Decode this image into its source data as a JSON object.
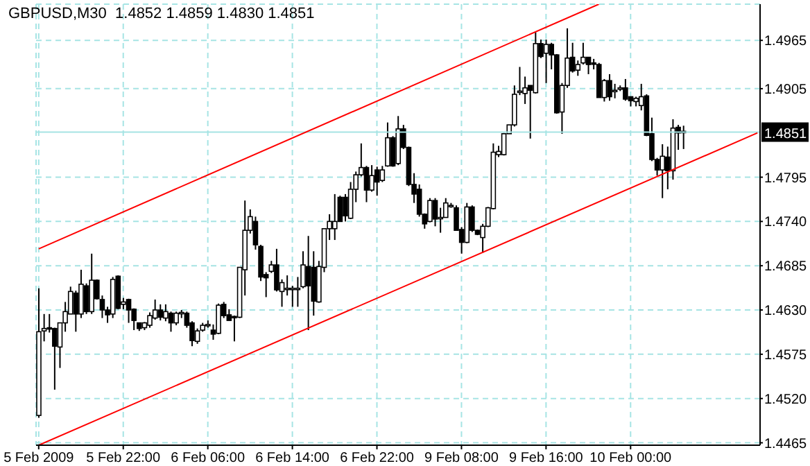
{
  "chart_data": {
    "type": "candlestick",
    "title": "GBPUSD,M30  1.4852 1.4859 1.4830 1.4851",
    "categories": [
      "5 Feb 2009",
      null,
      null,
      null,
      null,
      null,
      null,
      null,
      null,
      null,
      null,
      null,
      null,
      null,
      null,
      null,
      "5 Feb 22:00",
      null,
      null,
      null,
      null,
      null,
      null,
      null,
      null,
      null,
      null,
      null,
      null,
      null,
      null,
      null,
      "6 Feb 06:00",
      null,
      null,
      null,
      null,
      null,
      null,
      null,
      null,
      null,
      null,
      null,
      null,
      null,
      null,
      null,
      "6 Feb 14:00",
      null,
      null,
      null,
      null,
      null,
      null,
      null,
      null,
      null,
      null,
      null,
      null,
      null,
      null,
      null,
      "6 Feb 22:00",
      null,
      null,
      null,
      null,
      null,
      null,
      null,
      null,
      null,
      null,
      null,
      null,
      null,
      null,
      null,
      "9 Feb 08:00",
      null,
      null,
      null,
      null,
      null,
      null,
      null,
      null,
      null,
      null,
      null,
      null,
      null,
      null,
      null,
      "9 Feb 16:00",
      null,
      null,
      null,
      null,
      null,
      null,
      null,
      null,
      null,
      null,
      null,
      null,
      null,
      null,
      null,
      "10 Feb 00:00",
      null,
      null,
      null,
      null,
      null,
      null,
      null,
      null,
      null,
      null,
      null,
      null,
      null,
      null,
      null,
      null,
      null,
      null,
      null,
      null,
      null,
      null,
      null,
      null
    ],
    "ohlc": [
      [
        1.4499,
        1.4657,
        1.4496,
        1.4603
      ],
      [
        1.4604,
        1.4625,
        1.4591,
        1.4607
      ],
      [
        1.4608,
        1.4625,
        1.4602,
        1.4607
      ],
      [
        1.4607,
        1.4608,
        1.4531,
        1.4585
      ],
      [
        1.4584,
        1.4614,
        1.4558,
        1.4614
      ],
      [
        1.4614,
        1.464,
        1.4603,
        1.4628
      ],
      [
        1.4625,
        1.4659,
        1.4625,
        1.4653
      ],
      [
        1.4651,
        1.4654,
        1.4603,
        1.4625
      ],
      [
        1.4625,
        1.468,
        1.462,
        1.4662
      ],
      [
        1.466,
        1.4663,
        1.4625,
        1.4628
      ],
      [
        1.4628,
        1.47,
        1.4625,
        1.4667
      ],
      [
        1.4667,
        1.4668,
        1.4643,
        1.4644
      ],
      [
        1.4643,
        1.4648,
        1.462,
        1.463
      ],
      [
        1.463,
        1.4634,
        1.4614,
        1.4624
      ],
      [
        1.4625,
        1.4671,
        1.462,
        1.4668
      ],
      [
        1.4672,
        1.4673,
        1.4631,
        1.4632
      ],
      [
        1.4637,
        1.4645,
        1.4631,
        1.464
      ],
      [
        1.4643,
        1.4644,
        1.4614,
        1.463
      ],
      [
        1.4631,
        1.4632,
        1.4605,
        1.4617
      ],
      [
        1.4614,
        1.4614,
        1.4604,
        1.4607
      ],
      [
        1.4608,
        1.4615,
        1.4605,
        1.4614
      ],
      [
        1.4611,
        1.4627,
        1.4608,
        1.4623
      ],
      [
        1.462,
        1.4643,
        1.4618,
        1.463
      ],
      [
        1.463,
        1.4637,
        1.4617,
        1.4621
      ],
      [
        1.462,
        1.4637,
        1.4616,
        1.4628
      ],
      [
        1.4626,
        1.4628,
        1.4603,
        1.4614
      ],
      [
        1.4614,
        1.4628,
        1.4611,
        1.4626
      ],
      [
        1.4627,
        1.463,
        1.462,
        1.4627
      ],
      [
        1.4626,
        1.4628,
        1.4608,
        1.4611
      ],
      [
        1.4614,
        1.4616,
        1.4585,
        1.4592
      ],
      [
        1.4591,
        1.4607,
        1.4588,
        1.4604
      ],
      [
        1.4605,
        1.4614,
        1.4603,
        1.4611
      ],
      [
        1.4611,
        1.4617,
        1.4608,
        1.4612
      ],
      [
        1.4605,
        1.4612,
        1.4593,
        1.46
      ],
      [
        1.4601,
        1.4638,
        1.46,
        1.4636
      ],
      [
        1.4637,
        1.464,
        1.462,
        1.4623
      ],
      [
        1.4624,
        1.4631,
        1.4617,
        1.4617
      ],
      [
        1.4622,
        1.4623,
        1.4591,
        1.4621
      ],
      [
        1.4621,
        1.4683,
        1.462,
        1.4683
      ],
      [
        1.468,
        1.4766,
        1.4648,
        1.4729
      ],
      [
        1.4729,
        1.4755,
        1.4725,
        1.4746
      ],
      [
        1.474,
        1.4746,
        1.4705,
        1.4711
      ],
      [
        1.4709,
        1.4711,
        1.4666,
        1.4671
      ],
      [
        1.4674,
        1.4677,
        1.4646,
        1.467
      ],
      [
        1.4678,
        1.4691,
        1.4676,
        1.4686
      ],
      [
        1.4686,
        1.4706,
        1.4653,
        1.4655
      ],
      [
        1.4653,
        1.4668,
        1.4634,
        1.4664
      ],
      [
        1.4657,
        1.4673,
        1.4648,
        1.4657
      ],
      [
        1.4657,
        1.466,
        1.4634,
        1.4657
      ],
      [
        1.4657,
        1.4671,
        1.4634,
        1.4657
      ],
      [
        1.4659,
        1.4703,
        1.4657,
        1.4686
      ],
      [
        1.4684,
        1.4722,
        1.4605,
        1.466
      ],
      [
        1.4683,
        1.4703,
        1.4623,
        1.4641
      ],
      [
        1.464,
        1.4691,
        1.4639,
        1.4684
      ],
      [
        1.4683,
        1.4731,
        1.4677,
        1.4731
      ],
      [
        1.4731,
        1.4749,
        1.4717,
        1.474
      ],
      [
        1.4731,
        1.4774,
        1.4717,
        1.474
      ],
      [
        1.477,
        1.4772,
        1.474,
        1.474
      ],
      [
        1.477,
        1.4774,
        1.474,
        1.4747
      ],
      [
        1.4744,
        1.4789,
        1.4743,
        1.478
      ],
      [
        1.478,
        1.4802,
        1.4764,
        1.4798
      ],
      [
        1.4798,
        1.4837,
        1.4796,
        1.4807
      ],
      [
        1.4807,
        1.4809,
        1.4764,
        1.4779
      ],
      [
        1.4779,
        1.481,
        1.4777,
        1.4797
      ],
      [
        1.4804,
        1.4808,
        1.4772,
        1.4789
      ],
      [
        1.4791,
        1.4809,
        1.4789,
        1.4804
      ],
      [
        1.4809,
        1.4863,
        1.4808,
        1.4844
      ],
      [
        1.4844,
        1.4846,
        1.4808,
        1.4809
      ],
      [
        1.4812,
        1.4871,
        1.481,
        1.4855
      ],
      [
        1.4855,
        1.486,
        1.483,
        1.4832
      ],
      [
        1.4832,
        1.4833,
        1.4784,
        1.4786
      ],
      [
        1.4786,
        1.48,
        1.4763,
        1.4774
      ],
      [
        1.478,
        1.4786,
        1.4746,
        1.4749
      ],
      [
        1.4749,
        1.475,
        1.4731,
        1.4737
      ],
      [
        1.474,
        1.4769,
        1.4739,
        1.4766
      ],
      [
        1.4766,
        1.4769,
        1.4734,
        1.4743
      ],
      [
        1.4745,
        1.4757,
        1.4726,
        1.4745
      ],
      [
        1.4745,
        1.4769,
        1.4745,
        1.4763
      ],
      [
        1.476,
        1.4763,
        1.4757,
        1.476
      ],
      [
        1.4757,
        1.476,
        1.4729,
        1.4729
      ],
      [
        1.473,
        1.4733,
        1.47,
        1.4714
      ],
      [
        1.4714,
        1.4763,
        1.4713,
        1.4758
      ],
      [
        1.4758,
        1.476,
        1.4727,
        1.4729
      ],
      [
        1.4729,
        1.473,
        1.4723,
        1.4724
      ],
      [
        1.472,
        1.4737,
        1.4701,
        1.4734
      ],
      [
        1.4734,
        1.4758,
        1.4733,
        1.4757
      ],
      [
        1.4756,
        1.4837,
        1.4755,
        1.4826
      ],
      [
        1.4823,
        1.4834,
        1.482,
        1.4827
      ],
      [
        1.4823,
        1.485,
        1.4822,
        1.4849
      ],
      [
        1.4849,
        1.486,
        1.4849,
        1.486
      ],
      [
        1.486,
        1.4909,
        1.4858,
        1.4898
      ],
      [
        1.4901,
        1.4932,
        1.4897,
        1.4902
      ],
      [
        1.4899,
        1.492,
        1.4886,
        1.4906
      ],
      [
        1.4909,
        1.4909,
        1.4843,
        1.4903
      ],
      [
        1.49,
        1.4975,
        1.4899,
        1.4961
      ],
      [
        1.4961,
        1.4966,
        1.4943,
        1.4945
      ],
      [
        1.4949,
        1.4966,
        1.4912,
        1.496
      ],
      [
        1.496,
        1.4962,
        1.4929,
        1.4947
      ],
      [
        1.4947,
        1.4948,
        1.4874,
        1.4875
      ],
      [
        1.4876,
        1.4912,
        1.4849,
        1.4909
      ],
      [
        1.4909,
        1.498,
        1.4906,
        1.4943
      ],
      [
        1.4944,
        1.4962,
        1.4925,
        1.4927
      ],
      [
        1.4928,
        1.494,
        1.4921,
        1.4935
      ],
      [
        1.4937,
        1.4962,
        1.4935,
        1.4944
      ],
      [
        1.4944,
        1.4944,
        1.4923,
        1.4935
      ],
      [
        1.4937,
        1.4942,
        1.4929,
        1.4936
      ],
      [
        1.4935,
        1.4937,
        1.4894,
        1.4894
      ],
      [
        1.4894,
        1.4917,
        1.4889,
        1.4915
      ],
      [
        1.4915,
        1.4923,
        1.489,
        1.4895
      ],
      [
        1.4903,
        1.4911,
        1.4893,
        1.4903
      ],
      [
        1.4906,
        1.4909,
        1.4902,
        1.4906
      ],
      [
        1.4906,
        1.4917,
        1.489,
        1.4892
      ],
      [
        1.4895,
        1.4895,
        1.4883,
        1.489
      ],
      [
        1.4889,
        1.4895,
        1.4883,
        1.4893
      ],
      [
        1.4884,
        1.4911,
        1.4878,
        1.4895
      ],
      [
        1.4896,
        1.4898,
        1.4846,
        1.4847
      ],
      [
        1.4849,
        1.4869,
        1.4815,
        1.4817
      ],
      [
        1.4817,
        1.4819,
        1.4797,
        1.4804
      ],
      [
        1.4804,
        1.4836,
        1.4769,
        1.4821
      ],
      [
        1.482,
        1.4833,
        1.478,
        1.4803
      ],
      [
        1.4803,
        1.4867,
        1.4792,
        1.4856
      ],
      [
        1.4857,
        1.486,
        1.4829,
        1.485
      ],
      [
        1.4852,
        1.4859,
        1.483,
        1.4851
      ],
      null,
      null,
      null,
      null,
      null,
      null,
      null,
      null,
      null,
      null,
      null,
      null,
      null,
      null
    ],
    "series": [
      {
        "type": "line",
        "color": "#ff0000",
        "values": [
          1.4706,
          null,
          null,
          null,
          null,
          null,
          null,
          null,
          null,
          null,
          null,
          null,
          null,
          null,
          null,
          null,
          null,
          null,
          null,
          null,
          null,
          null,
          null,
          null,
          null,
          null,
          null,
          null,
          null,
          null,
          null,
          null,
          null,
          null,
          null,
          null,
          null,
          null,
          null,
          null,
          null,
          null,
          null,
          null,
          null,
          null,
          null,
          null,
          null,
          null,
          null,
          null,
          null,
          null,
          null,
          null,
          null,
          null,
          null,
          null,
          null,
          null,
          null,
          null,
          null,
          null,
          null,
          null,
          null,
          null,
          null,
          null,
          null,
          null,
          null,
          null,
          null,
          null,
          null,
          null,
          null,
          null,
          null,
          null,
          null,
          null,
          null,
          null,
          null,
          null,
          null,
          null,
          null,
          null,
          null,
          null,
          null,
          null,
          null,
          null,
          null,
          null,
          null,
          null,
          null,
          null,
          1.501,
          null,
          null,
          null,
          null,
          null,
          null,
          null,
          null,
          null,
          null,
          null,
          null,
          null,
          null,
          null,
          null,
          null,
          null,
          null,
          null,
          null,
          null,
          null,
          null,
          null,
          null,
          null,
          null,
          null,
          null
        ]
      },
      {
        "type": "line",
        "color": "#ff0000",
        "values": [
          1.4462,
          null,
          null,
          null,
          null,
          null,
          null,
          null,
          null,
          null,
          null,
          null,
          null,
          null,
          null,
          null,
          null,
          null,
          null,
          null,
          null,
          null,
          null,
          null,
          null,
          null,
          null,
          null,
          null,
          null,
          null,
          null,
          null,
          null,
          null,
          null,
          null,
          null,
          null,
          null,
          null,
          null,
          null,
          null,
          null,
          null,
          null,
          null,
          null,
          null,
          null,
          null,
          null,
          null,
          null,
          null,
          null,
          null,
          null,
          null,
          null,
          null,
          null,
          null,
          null,
          null,
          null,
          null,
          null,
          null,
          null,
          null,
          null,
          null,
          null,
          null,
          null,
          null,
          null,
          null,
          null,
          null,
          null,
          null,
          null,
          null,
          null,
          null,
          null,
          null,
          null,
          null,
          null,
          null,
          null,
          null,
          null,
          null,
          null,
          null,
          null,
          null,
          null,
          null,
          null,
          null,
          null,
          null,
          null,
          null,
          null,
          null,
          null,
          null,
          null,
          null,
          null,
          null,
          null,
          null,
          null,
          null,
          null,
          null,
          null,
          null,
          null,
          null,
          null,
          null,
          null,
          null,
          null,
          null,
          null,
          null,
          1.485
        ]
      }
    ],
    "ylim": [
      1.4462,
      1.501
    ],
    "yticks": [
      1.4965,
      1.4905,
      1.4795,
      {
        "value": 1.474,
        "label": "1.4740"
      },
      1.4685,
      {
        "value": 1.463,
        "label": "1.4630"
      },
      1.4575,
      {
        "value": 1.452,
        "label": "1.4520"
      },
      1.4465
    ],
    "ref_lines": [
      {
        "axis": "y",
        "value": 1.4851,
        "label": "1.4851",
        "color": "#a6e4e4"
      }
    ],
    "grid": true
  }
}
